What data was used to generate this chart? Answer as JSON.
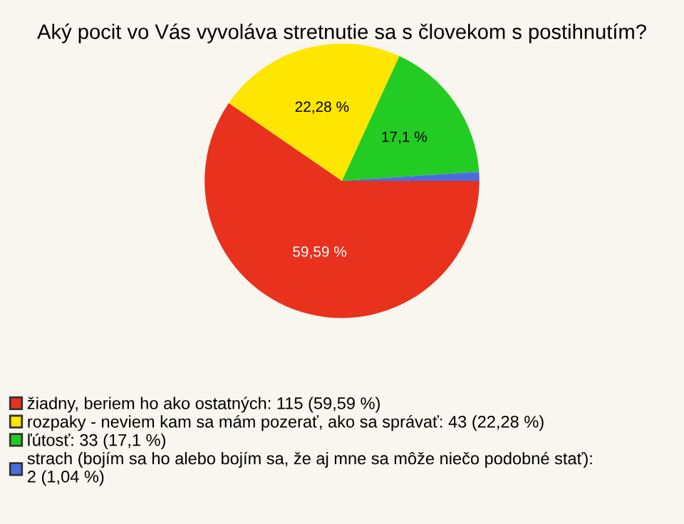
{
  "chart_data": {
    "type": "pie",
    "title": "Aký pocit vo Vás vyvoláva stretnutie sa s človekom s postihnutím?",
    "categories": [
      "žiadny, beriem ho ako ostatných: 115 (59,59 %)",
      "rozpaky - neviem kam sa mám pozerať, ako sa správať: 43 (22,28 %)",
      "ľútosť: 33 (17,1 %)",
      "strach (bojím sa ho alebo bojím sa, že aj mne sa môže niečo podobné stať):\n2 (1,04 %)"
    ],
    "values": [
      59.59,
      22.28,
      17.1,
      1.04
    ],
    "colors": [
      "#e8321e",
      "#ffe600",
      "#22cc22",
      "#4a6ee0"
    ],
    "value_labels": [
      "59,59 %",
      "22,28 %",
      "17,1 %",
      null
    ],
    "legend": "bottom left"
  }
}
